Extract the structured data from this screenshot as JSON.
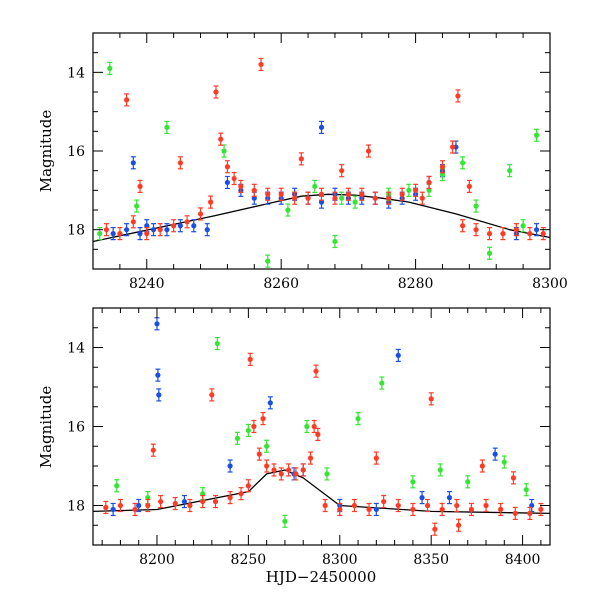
{
  "chart_data": [
    {
      "type": "scatter",
      "panel": "top",
      "xlabel": "",
      "ylabel": "Magnitude",
      "xlim": [
        8232,
        8300
      ],
      "ylim": [
        19,
        13
      ],
      "y_inverted": true,
      "xticks": [
        8240,
        8260,
        8280,
        8300
      ],
      "yticks": [
        14,
        16,
        18
      ],
      "colors": {
        "blue": "#1a4fe6",
        "green": "#33e633",
        "red": "#ff3b26",
        "model": "#000000"
      },
      "model_curve": {
        "x": [
          8232,
          8250,
          8259,
          8263,
          8267,
          8271,
          8275,
          8279,
          8286,
          8294,
          8300
        ],
        "y": [
          18.3,
          17.65,
          17.3,
          17.15,
          17.1,
          17.12,
          17.2,
          17.3,
          17.6,
          18.0,
          18.2
        ]
      },
      "series": [
        {
          "color": "red",
          "x": [
            8234,
            8236,
            8238,
            8240,
            8242,
            8244,
            8246,
            8248,
            8249.5,
            8250.3,
            8251,
            8252,
            8253,
            8254,
            8256,
            8258,
            8260,
            8262,
            8264,
            8266,
            8268,
            8270,
            8272,
            8274,
            8276,
            8278,
            8280,
            8282,
            8284,
            8285.5,
            8286.3,
            8287,
            8289,
            8291,
            8293,
            8295,
            8297,
            8299,
            8237,
            8239,
            8245,
            8257,
            8263,
            8269,
            8273,
            8281,
            8288
          ],
          "y": [
            18.0,
            18.1,
            17.8,
            18.1,
            18.0,
            17.9,
            17.8,
            17.6,
            17.3,
            14.5,
            15.7,
            16.4,
            16.7,
            16.9,
            17.0,
            17.1,
            17.1,
            17.2,
            17.2,
            17.1,
            17.2,
            17.1,
            17.1,
            17.2,
            17.2,
            17.1,
            17.0,
            16.8,
            16.4,
            15.9,
            14.6,
            17.9,
            18.0,
            18.1,
            18.1,
            18.0,
            18.1,
            18.1,
            14.7,
            16.9,
            16.3,
            13.8,
            16.2,
            16.5,
            16.0,
            17.2,
            16.9
          ]
        },
        {
          "color": "blue",
          "x": [
            8235,
            8237,
            8239,
            8241,
            8243,
            8245,
            8247,
            8249,
            8252,
            8254,
            8256,
            8258,
            8260,
            8262,
            8264,
            8266,
            8268,
            8270,
            8272,
            8274,
            8276,
            8278,
            8280,
            8282,
            8284,
            8286,
            8295,
            8298,
            8238,
            8266,
            8240
          ],
          "y": [
            18.1,
            18.0,
            18.1,
            18.0,
            18.0,
            17.9,
            17.9,
            18.0,
            16.8,
            17.0,
            17.2,
            17.2,
            17.2,
            17.1,
            17.2,
            17.3,
            17.1,
            17.2,
            17.2,
            17.2,
            17.3,
            17.2,
            17.1,
            16.8,
            16.5,
            15.9,
            18.1,
            18.0,
            16.3,
            15.4,
            17.9
          ]
        },
        {
          "color": "green",
          "x": [
            8233,
            8234.5,
            8243,
            8251.5,
            8258,
            8261,
            8265,
            8269,
            8271,
            8276,
            8279,
            8282,
            8284,
            8287,
            8289,
            8291,
            8294,
            8296,
            8298,
            8238.5,
            8268
          ],
          "y": [
            18.1,
            13.9,
            15.4,
            16.0,
            18.8,
            17.5,
            16.9,
            17.2,
            17.3,
            17.1,
            17.0,
            17.0,
            16.6,
            16.3,
            17.4,
            18.6,
            16.5,
            17.9,
            15.6,
            17.4,
            18.3
          ]
        }
      ]
    },
    {
      "type": "scatter",
      "panel": "bottom",
      "xlabel": "HJD−2450000",
      "ylabel": "Magnitude",
      "xlim": [
        8165,
        8415
      ],
      "ylim": [
        19,
        13
      ],
      "y_inverted": true,
      "xticks": [
        8200,
        8250,
        8300,
        8350,
        8400
      ],
      "yticks": [
        14,
        16,
        18
      ],
      "colors": {
        "blue": "#1a4fe6",
        "green": "#33e633",
        "red": "#ff3b26",
        "model": "#000000"
      },
      "model_curve": {
        "x": [
          8165,
          8200,
          8250,
          8260,
          8270,
          8280,
          8300,
          8350,
          8415
        ],
        "y": [
          18.15,
          18.1,
          17.65,
          17.2,
          17.1,
          17.3,
          18.0,
          18.15,
          18.2
        ]
      },
      "series": [
        {
          "color": "red",
          "x": [
            8172,
            8180,
            8188,
            8195,
            8202,
            8210,
            8218,
            8225,
            8232,
            8240,
            8246,
            8250,
            8251,
            8253,
            8256,
            8260,
            8264,
            8268,
            8272,
            8276,
            8280,
            8284,
            8286,
            8287,
            8292,
            8300,
            8308,
            8316,
            8324,
            8332,
            8340,
            8348,
            8356,
            8364,
            8372,
            8380,
            8388,
            8396,
            8404,
            8410,
            8198,
            8230,
            8258,
            8288,
            8320,
            8350,
            8378,
            8352,
            8365,
            8395
          ],
          "y": [
            18.05,
            18.0,
            18.1,
            18.0,
            17.9,
            17.95,
            18.0,
            17.9,
            17.9,
            17.8,
            17.7,
            17.5,
            14.3,
            16.0,
            16.7,
            17.0,
            17.1,
            17.2,
            17.1,
            17.2,
            17.1,
            16.8,
            16.0,
            14.6,
            18.0,
            18.1,
            18.0,
            18.1,
            17.9,
            18.0,
            18.1,
            18.0,
            18.1,
            18.0,
            18.1,
            18.0,
            18.1,
            18.2,
            18.2,
            18.1,
            16.6,
            15.2,
            15.8,
            16.2,
            16.8,
            15.3,
            17.0,
            18.6,
            18.5,
            17.3
          ]
        },
        {
          "color": "blue",
          "x": [
            8176,
            8190,
            8200,
            8200.5,
            8201,
            8215,
            8240,
            8262,
            8275,
            8280,
            8300,
            8320,
            8332,
            8345,
            8360,
            8385,
            8405
          ],
          "y": [
            18.1,
            18.0,
            13.4,
            14.7,
            15.2,
            17.9,
            17.0,
            15.4,
            17.2,
            17.1,
            18.0,
            18.1,
            14.2,
            17.8,
            17.8,
            16.7,
            18.0
          ]
        },
        {
          "color": "green",
          "x": [
            8178,
            8195,
            8225,
            8233,
            8244,
            8250,
            8270,
            8282,
            8293,
            8310,
            8323,
            8340,
            8355,
            8370,
            8390,
            8402,
            8260
          ],
          "y": [
            17.5,
            17.8,
            17.7,
            13.9,
            16.3,
            16.1,
            18.4,
            16.0,
            17.2,
            15.8,
            14.9,
            17.4,
            17.1,
            17.4,
            16.9,
            17.6,
            16.5
          ]
        }
      ]
    }
  ]
}
